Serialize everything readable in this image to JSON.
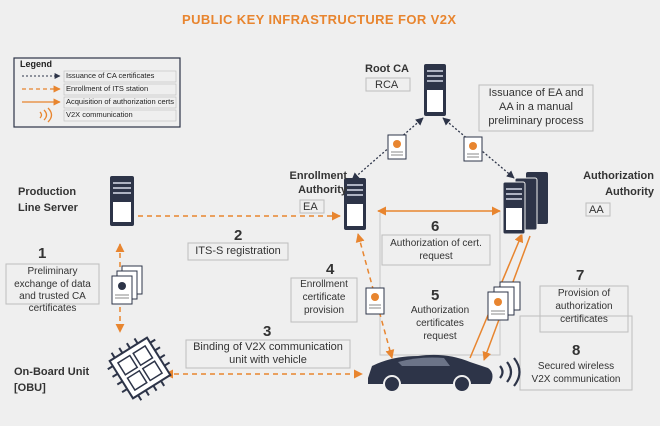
{
  "title": "PUBLIC KEY INFRASTRUCTURE FOR V2X",
  "colors": {
    "accent": "#e8852f",
    "server": "#2d3448",
    "background": "#efefef",
    "text": "#333333"
  },
  "legend": {
    "title": "Legend",
    "items": [
      "Issuance of CA certificates",
      "Enrollment of ITS station",
      "Acquisition of authorization certs",
      "V2X communication"
    ]
  },
  "nodes": {
    "root_ca": {
      "name": "Root CA",
      "abbr": "RCA",
      "icon": "server-icon"
    },
    "enrollment_authority": {
      "name_lines": [
        "Enrollment",
        "Authority"
      ],
      "abbr": "EA",
      "icon": "server-icon"
    },
    "authorization_authority": {
      "name_lines": [
        "Authorization",
        "Authority"
      ],
      "abbr": "AA",
      "icon": "server-stack-icon"
    },
    "production_line_server": {
      "name_lines": [
        "Production",
        "Line Server"
      ],
      "icon": "server-icon"
    },
    "on_board_unit": {
      "name_lines": [
        "On-Board Unit",
        "[OBU]"
      ],
      "icon": "chip-icon"
    },
    "vehicle": {
      "icon": "car-icon"
    }
  },
  "notes": {
    "issuance_lines": [
      "Issuance of EA and",
      "AA in a manual",
      "preliminary process"
    ]
  },
  "steps": [
    {
      "number": "1",
      "lines": [
        "Preliminary",
        "exchange of data",
        "and trusted CA",
        "certificates"
      ]
    },
    {
      "number": "2",
      "lines": [
        "ITS-S registration"
      ]
    },
    {
      "number": "3",
      "lines": [
        "Binding of V2X communication",
        "unit with vehicle"
      ]
    },
    {
      "number": "4",
      "lines": [
        "Enrollment",
        "certificate",
        "provision"
      ]
    },
    {
      "number": "5",
      "lines": [
        "Authorization",
        "certificates",
        "request"
      ]
    },
    {
      "number": "6",
      "lines": [
        "Authorization of cert.",
        "request"
      ]
    },
    {
      "number": "7",
      "lines": [
        "Provision of",
        "authorization",
        "certificates"
      ]
    },
    {
      "number": "8",
      "lines": [
        "Secured wireless",
        "V2X communication"
      ]
    }
  ]
}
